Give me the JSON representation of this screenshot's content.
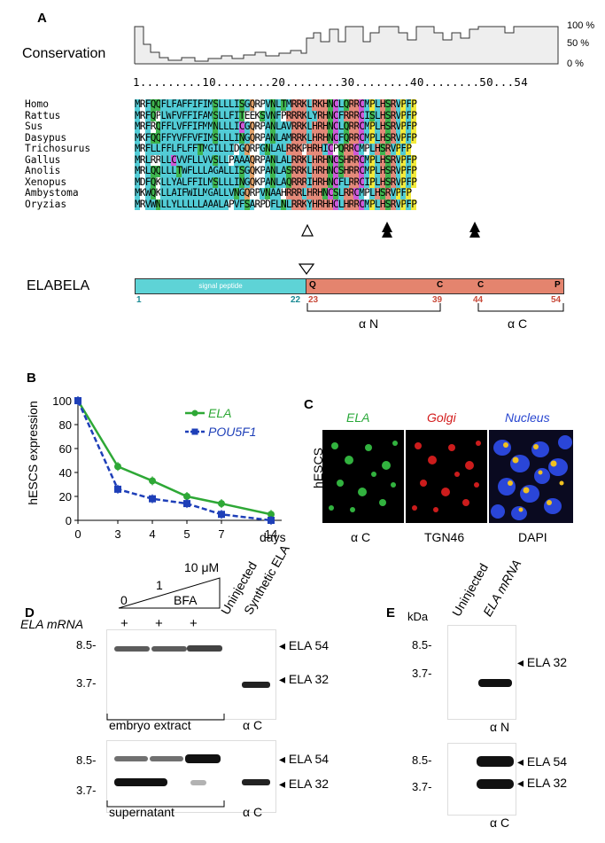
{
  "panel_a": {
    "letter": "A",
    "conservation_label": "Conservation",
    "conservation_ticks": [
      "100 %",
      "50 %",
      "0 %"
    ],
    "ruler": "1.........10........20........30........40........50...54",
    "species": [
      "Homo",
      "Rattus",
      "Sus",
      "Dasypus",
      "Trichosurus",
      "Gallus",
      "Anolis",
      "Xenopus",
      "Ambystoma",
      "Oryzias"
    ],
    "sequences": [
      "MRFQQFLFAFFIFIMSLLLISGQRPVNLTMRRKLRKHNCLQRRCMPLHSRVPFP",
      "MRFQPLWFVFFIFAMSLLFITEEKSVNFPRRRKLYRHNCFRRRCISLHSRVPFP",
      "MRFRQFFLVFFIFMMNLLLICGQRPANLAVRRKLHRHNCLQRRCMPLHSRVPFP",
      "MKFQQFFYVFFVFIMSLLLINGQRPANLAMRRKLHRHNCFQRRCMPLHSRVPFP",
      "MRFLLFFLFLFFTMGILLIDGQRPGNLALRRKPHRHICPQRRCMPLHSRVPFP",
      "MRLRRLLCVVFLLVVSLLPAAAQRPANLALRRKLHRHNCSHRRCMPLHSRVPFP",
      "MRLQQLLLTWFLLLAGALLISGQKPANLASRRKLHRHNCSHRRCMPLHSRVPFP",
      "MDFQKLLYALFFILMSLLLINGQKPANLAQRRRIHRHNCFLRRCIPLHSRVPFP",
      "MKWQKLLAIFWILMGALLVNGQRPVNAAHRRRLHRHNCSLRRCMPLHSRVPFP",
      "MRVWNLLYLLLLLAAALAPVFSARPDFLNLRRKYHRHHCLHRRCMPLHSRVPFP"
    ],
    "elabela_label": "ELABELA",
    "signal_peptide_label": "signal peptide",
    "domain_letters": [
      "Q",
      "C",
      "C",
      "P"
    ],
    "positions": [
      "1",
      "22",
      "23",
      "39",
      "44",
      "54"
    ],
    "alpha_n": "α N",
    "alpha_c": "α C"
  },
  "panel_b": {
    "letter": "B",
    "ylabel": "hESCS expression",
    "xlabel": "days",
    "legend": [
      "ELA",
      "POU5F1"
    ]
  },
  "chart_data": {
    "type": "line",
    "x": [
      "0",
      "3",
      "4",
      "5",
      "7",
      "14"
    ],
    "ylim": [
      0,
      100
    ],
    "yticks": [
      "0",
      "20",
      "40",
      "60",
      "80",
      "100"
    ],
    "series": [
      {
        "name": "ELA",
        "color": "#2ea836",
        "values": [
          100,
          45,
          33,
          20,
          14,
          5
        ]
      },
      {
        "name": "POU5F1",
        "color": "#1e3fb8",
        "values": [
          100,
          26,
          18,
          14,
          5,
          0
        ]
      }
    ]
  },
  "panel_c": {
    "letter": "C",
    "row_label": "hESCS",
    "titles": [
      "ELA",
      "Golgi",
      "Nucleus"
    ],
    "captions": [
      "α C",
      "TGN46",
      "DAPI"
    ],
    "title_colors": [
      "#2aa83a",
      "#d31b1b",
      "#2a47d0"
    ]
  },
  "panel_d": {
    "letter": "D",
    "bfa_zero": "0",
    "bfa_one": "1",
    "bfa_ten": "10 μM",
    "bfa_label": "BFA",
    "mrna_label": "ELA mRNA",
    "plus": "+",
    "col_uninjected": "Uninjected",
    "col_synthetic": "Synthetic ELA",
    "mw": [
      "8.5-",
      "3.7-"
    ],
    "band_labels": [
      "ELA 54",
      "ELA 32"
    ],
    "extract_label": "embryo extract",
    "supernatant_label": "supernatant",
    "antibody": "α C"
  },
  "panel_e": {
    "letter": "E",
    "kda": "kDa",
    "col_uninjected": "Uninjected",
    "col_mrna": "ELA mRNA",
    "mw": [
      "8.5-",
      "3.7-"
    ],
    "band_top": "ELA 32",
    "band_bottom": [
      "ELA 54",
      "ELA 32"
    ],
    "ab_top": "α N",
    "ab_bottom": "α C"
  }
}
